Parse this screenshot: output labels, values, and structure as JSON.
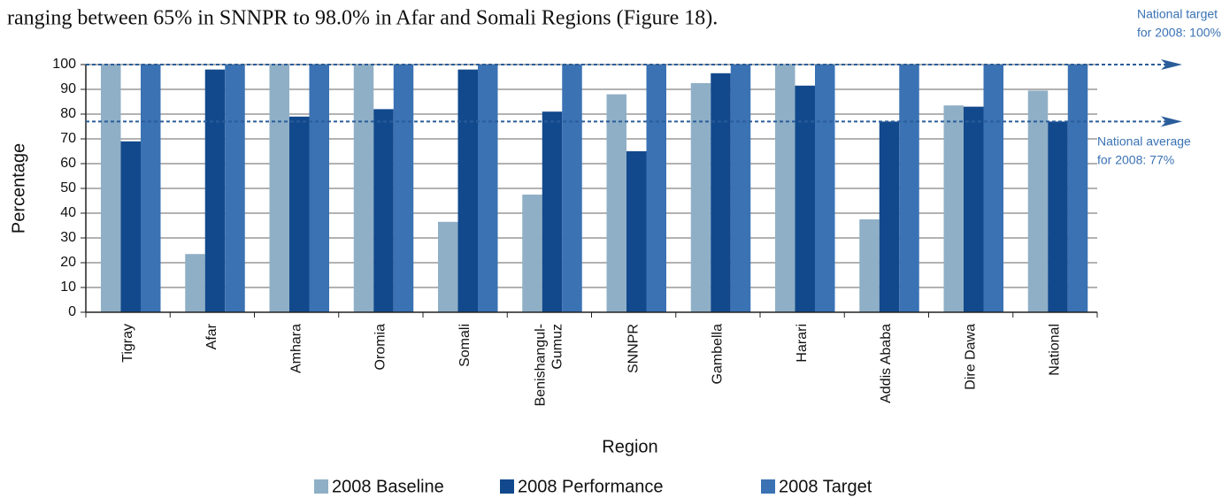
{
  "chart_data": {
    "type": "bar",
    "context_text": "ranging between 65% in SNNPR to 98.0% in Afar and Somali Regions (Figure 18).",
    "x_label": "Region",
    "y_label": "Percentage",
    "categories": [
      "Tigray",
      "Afar",
      "Amhara",
      "Oromia",
      "Somali",
      "Benishangul-\nGumuz",
      "SNNPR",
      "Gambella",
      "Harari",
      "Addis Ababa",
      "Dire Dawa",
      "National"
    ],
    "series": [
      {
        "name": "2008 Baseline",
        "color": "#8fafc6",
        "values": [
          100,
          23.5,
          100,
          100,
          36.5,
          47.5,
          88,
          92.5,
          100,
          37.5,
          83.5,
          89.5
        ]
      },
      {
        "name": "2008 Performance",
        "color": "#12498c",
        "values": [
          69,
          98,
          79,
          82,
          98,
          81,
          65,
          96.5,
          91.5,
          77,
          83,
          77
        ]
      },
      {
        "name": "2008 Target",
        "color": "#3a72b4",
        "values": [
          100,
          100,
          100,
          100,
          100,
          100,
          100,
          100,
          100,
          100,
          100,
          100
        ]
      }
    ],
    "reference_lines": [
      {
        "value": 100,
        "label": [
          "National target",
          "for 2008: 100%"
        ]
      },
      {
        "value": 77,
        "label": [
          "National average",
          "for 2008:  77%"
        ]
      }
    ],
    "reference_color": "#2a5d9a",
    "ylim": [
      0,
      100
    ],
    "yticks": [
      0,
      10,
      20,
      30,
      40,
      50,
      60,
      70,
      80,
      90,
      100
    ],
    "grid": true,
    "legend": "bottom"
  }
}
